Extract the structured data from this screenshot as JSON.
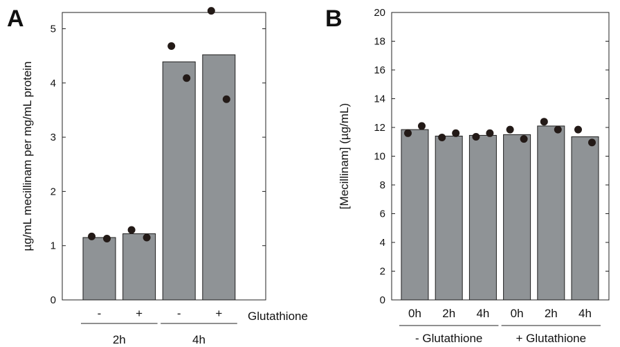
{
  "chart_data": [
    {
      "type": "bar",
      "panel_label": "A",
      "categories": [
        "-",
        "+",
        "-",
        "+"
      ],
      "groups": [
        {
          "label": "2h",
          "span": [
            0,
            1
          ]
        },
        {
          "label": "4h",
          "span": [
            2,
            3
          ]
        }
      ],
      "row_label": "Glutathione",
      "values": [
        1.15,
        1.22,
        4.39,
        4.52
      ],
      "points": [
        [
          1.17,
          1.13
        ],
        [
          1.29,
          1.15
        ],
        [
          4.68,
          4.09
        ],
        [
          5.33,
          3.7
        ]
      ],
      "ylabel": "µg/mL mecillinam per mg/mL protein",
      "ylim": [
        0,
        5.3
      ],
      "yticks": [
        "0",
        "1",
        "2",
        "3",
        "4",
        "5"
      ],
      "grid": false,
      "bar_color": "#8f9396",
      "point_color": "#231a17"
    },
    {
      "type": "bar",
      "panel_label": "B",
      "categories": [
        "0h",
        "2h",
        "4h",
        "0h",
        "2h",
        "4h"
      ],
      "groups": [
        {
          "label": "- Glutathione",
          "span": [
            0,
            2
          ]
        },
        {
          "label": "+ Glutathione",
          "span": [
            3,
            5
          ]
        }
      ],
      "values": [
        11.85,
        11.4,
        11.45,
        11.5,
        12.1,
        11.35
      ],
      "points": [
        [
          11.6,
          12.1
        ],
        [
          11.3,
          11.6
        ],
        [
          11.35,
          11.6
        ],
        [
          11.85,
          11.2
        ],
        [
          12.4,
          11.85
        ],
        [
          11.85,
          10.95
        ]
      ],
      "ylabel": "[Mecillinam] (µg/mL)",
      "ylim": [
        0,
        20
      ],
      "yticks": [
        "0",
        "2",
        "4",
        "6",
        "8",
        "10",
        "12",
        "14",
        "16",
        "18",
        "20"
      ],
      "grid": false,
      "bar_color": "#8f9396",
      "point_color": "#231a17"
    }
  ]
}
